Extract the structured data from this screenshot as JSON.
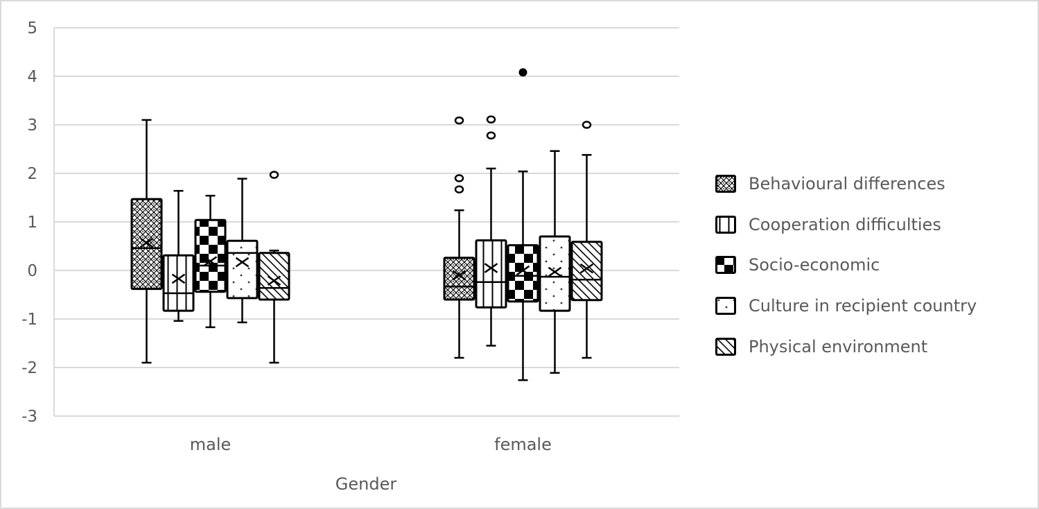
{
  "chart_data": {
    "type": "box",
    "title": "",
    "xlabel": "Gender",
    "ylabel": "",
    "ylim": [
      -3,
      5
    ],
    "yticks": [
      5,
      4,
      3,
      2,
      1,
      0,
      -1,
      -2,
      -3
    ],
    "grid": true,
    "legend_position": "right",
    "categories": [
      "male",
      "female"
    ],
    "series": [
      {
        "name": "Behavioural differences",
        "pattern": "diamond-lattice",
        "boxes": [
          {
            "category": "male",
            "whisker_low": -1.9,
            "q1": -0.38,
            "median": 0.46,
            "q3": 1.47,
            "whisker_high": 3.1,
            "mean": 0.57,
            "outliers": []
          },
          {
            "category": "female",
            "whisker_low": -1.8,
            "q1": -0.6,
            "median": -0.33,
            "q3": 0.26,
            "whisker_high": 1.24,
            "mean": -0.1,
            "outliers": [
              3.09,
              1.9,
              1.67
            ]
          }
        ]
      },
      {
        "name": "Cooperation difficulties",
        "pattern": "vertical-stripes",
        "boxes": [
          {
            "category": "male",
            "whisker_low": -1.04,
            "q1": -0.83,
            "median": -0.47,
            "q3": 0.31,
            "whisker_high": 1.64,
            "mean": -0.17,
            "outliers": []
          },
          {
            "category": "female",
            "whisker_low": -1.55,
            "q1": -0.76,
            "median": -0.24,
            "q3": 0.62,
            "whisker_high": 2.1,
            "mean": 0.05,
            "outliers": [
              3.11,
              2.78
            ]
          }
        ]
      },
      {
        "name": "Socio-economic",
        "pattern": "checkerboard",
        "boxes": [
          {
            "category": "male",
            "whisker_low": -1.17,
            "q1": -0.44,
            "median": 0.1,
            "q3": 1.04,
            "whisker_high": 1.54,
            "mean": 0.19,
            "outliers": []
          },
          {
            "category": "female",
            "whisker_low": -2.26,
            "q1": -0.64,
            "median": -0.11,
            "q3": 0.52,
            "whisker_high": 2.04,
            "mean": 0.0,
            "outliers": [
              4.08
            ],
            "outlier_filled": true
          }
        ]
      },
      {
        "name": "Culture in recipient country",
        "pattern": "sparse-dots",
        "boxes": [
          {
            "category": "male",
            "whisker_low": -1.07,
            "q1": -0.57,
            "median": 0.36,
            "q3": 0.61,
            "whisker_high": 1.89,
            "mean": 0.17,
            "outliers": []
          },
          {
            "category": "female",
            "whisker_low": -2.11,
            "q1": -0.83,
            "median": -0.13,
            "q3": 0.7,
            "whisker_high": 2.46,
            "mean": -0.03,
            "outliers": []
          }
        ]
      },
      {
        "name": "Physical environment",
        "pattern": "diagonal-hatch",
        "boxes": [
          {
            "category": "male",
            "whisker_low": -1.9,
            "q1": -0.6,
            "median": -0.36,
            "q3": 0.36,
            "whisker_high": 0.41,
            "mean": -0.21,
            "outliers": [
              1.97
            ]
          },
          {
            "category": "female",
            "whisker_low": -1.8,
            "q1": -0.61,
            "median": -0.19,
            "q3": 0.59,
            "whisker_high": 2.38,
            "mean": 0.04,
            "outliers": [
              3.0
            ]
          }
        ]
      }
    ],
    "colors": {
      "box_stroke": "#000000",
      "gridline": "#d9d9d9",
      "text": "#595959",
      "frame_border": "#d9d9d9"
    }
  },
  "legend": {
    "items": [
      {
        "label": "Behavioural differences",
        "pattern": "diamond-lattice"
      },
      {
        "label": "Cooperation difficulties",
        "pattern": "vertical-stripes"
      },
      {
        "label": "Socio-economic",
        "pattern": "checkerboard"
      },
      {
        "label": "Culture in recipient country",
        "pattern": "sparse-dots"
      },
      {
        "label": "Physical environment",
        "pattern": "diagonal-hatch"
      }
    ]
  }
}
